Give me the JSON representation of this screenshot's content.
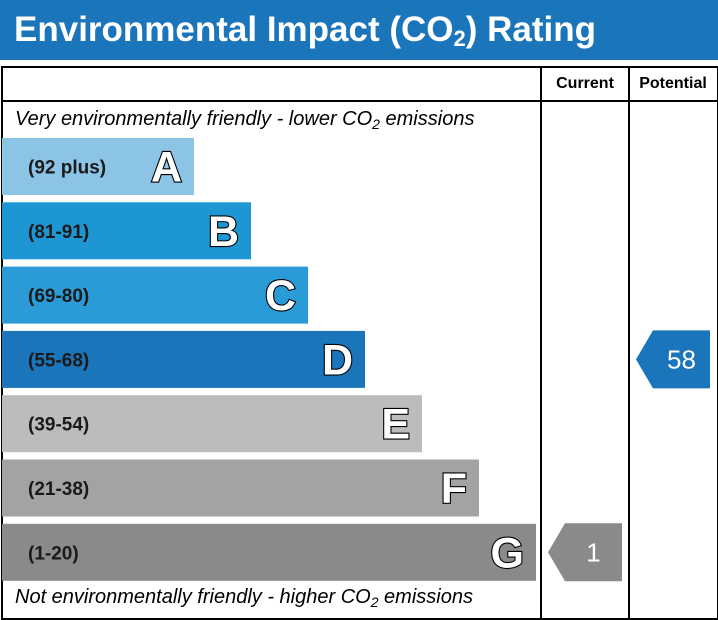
{
  "header": {
    "title_main": "Environmental Impact (CO",
    "title_sub": "2",
    "title_end": ") Rating"
  },
  "columns": {
    "current": "Current",
    "potential": "Potential"
  },
  "captions": {
    "top_main": "Very environmentally friendly - lower CO",
    "top_sub": "2",
    "top_end": " emissions",
    "bottom_main": "Not environmentally friendly - higher CO",
    "bottom_sub": "2",
    "bottom_end": " emissions"
  },
  "chart_data": {
    "type": "bar",
    "categories": [
      "A",
      "B",
      "C",
      "D",
      "E",
      "F",
      "G"
    ],
    "ranges": [
      "(92 plus)",
      "(81-91)",
      "(69-80)",
      "(55-68)",
      "(39-54)",
      "(21-38)",
      "(1-20)"
    ],
    "colors": [
      "#8cc4e6",
      "#1f96d4",
      "#2a9bd6",
      "#1b75bb",
      "#bcbcbb",
      "#a2a3a5",
      "#8a8a8c"
    ],
    "current": {
      "value": 1,
      "color": "#8a8a8c",
      "band": "G"
    },
    "potential": {
      "value": 58,
      "color": "#1b75bb",
      "band": "D"
    }
  }
}
